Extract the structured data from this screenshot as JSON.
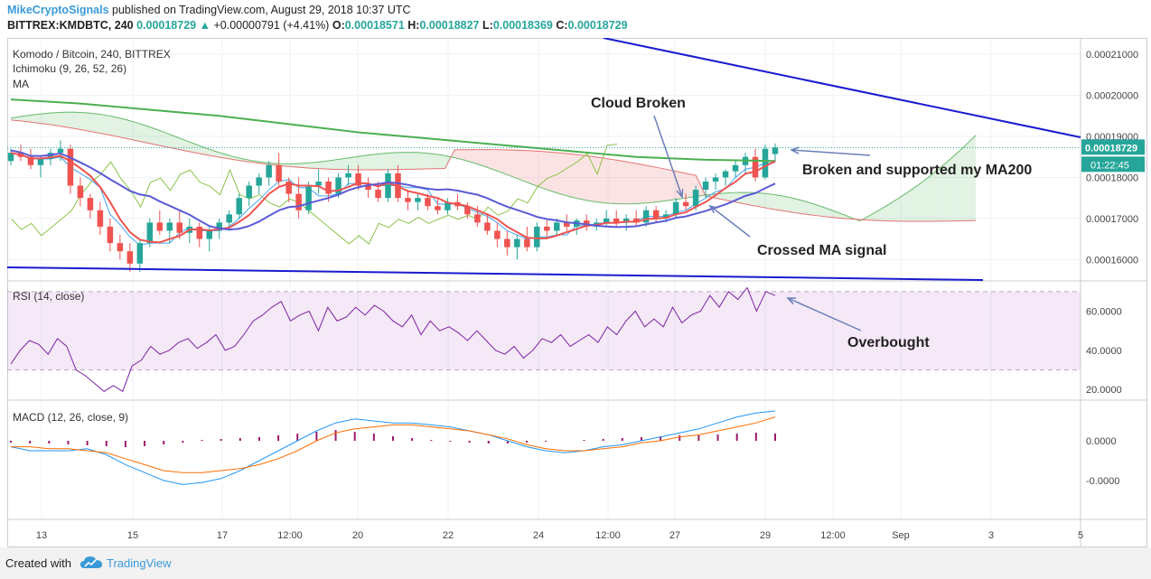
{
  "header": {
    "publisher": "MikeCryptoSignals",
    "published_text": "published on TradingView.com, August 29, 2018 10:37 UTC",
    "symbol": "BITTREX:KMDBTC, 240",
    "last": "0.00018729",
    "change": "+0.00000791 (+4.41%)",
    "o_label": "O:",
    "o": "0.00018571",
    "h_label": "H:",
    "h": "0.00018827",
    "l_label": "L:",
    "l": "0.00018369",
    "c_label": "C:",
    "c": "0.00018729"
  },
  "main_pane": {
    "title": "Komodo / Bitcoin, 240, BITTREX",
    "ichimoku_label": "Ichimoku (9, 26, 52, 26)",
    "ma_label": "MA",
    "price_badge": "0.00018729",
    "timer_badge": "01:22:45",
    "y_ticks": [
      "0.00021000",
      "0.00020000",
      "0.00019000",
      "0.00018000",
      "0.00017000",
      "0.00016000"
    ]
  },
  "annotations": {
    "cloud_broken": "Cloud Broken",
    "broken_supported": "Broken and supported my MA200",
    "crossed_ma": "Crossed MA signal",
    "overbought": "Overbought"
  },
  "rsi_pane": {
    "label": "RSI (14, close)",
    "y_ticks": [
      "60.0000",
      "40.0000",
      "20.0000"
    ]
  },
  "macd_pane": {
    "label": "MACD (12, 26, close, 9)",
    "y_ticks": [
      "0.0000",
      "-0.0000"
    ]
  },
  "x_axis": {
    "ticks": [
      "13",
      "15",
      "17",
      "12:00",
      "20",
      "22",
      "24",
      "12:00",
      "27",
      "29",
      "12:00",
      "Sep",
      "3",
      "5"
    ]
  },
  "footer": {
    "created_with": "Created with",
    "brand": "TradingView"
  },
  "colors": {
    "up": "#26a69a",
    "down": "#ef5350",
    "ma200": "#4caf50",
    "ma_fast": "#ef5350",
    "ma_blue": "#5b5bd6",
    "trendline": "#1a1ad0",
    "rsi": "#7b1fa2",
    "macd": "#2196f3",
    "signal": "#ff6d00",
    "hist": "#9c1a6a",
    "annotation_arrow": "#6a7fb8"
  },
  "chart_data": [
    {
      "type": "candlestick",
      "title": "Komodo / Bitcoin, 240, BITTREX",
      "ylim": [
        0.000155,
        0.000214
      ],
      "candles": [
        [
          0.000184,
          0.000187,
          0.000183,
          0.000186
        ],
        [
          0.000186,
          0.000188,
          0.000184,
          0.000185
        ],
        [
          0.000185,
          0.000187,
          0.000182,
          0.000183
        ],
        [
          0.000183,
          0.000185,
          0.00018,
          0.0001845
        ],
        [
          0.0001845,
          0.000187,
          0.000183,
          0.000186
        ],
        [
          0.000186,
          0.000189,
          0.000184,
          0.000187
        ],
        [
          0.000187,
          0.000188,
          0.000176,
          0.000178
        ],
        [
          0.000178,
          0.00018,
          0.000173,
          0.000175
        ],
        [
          0.000175,
          0.000176,
          0.00017,
          0.000172
        ],
        [
          0.000172,
          0.000174,
          0.000166,
          0.000168
        ],
        [
          0.000168,
          0.00017,
          0.000162,
          0.000164
        ],
        [
          0.000164,
          0.000166,
          0.00016,
          0.000162
        ],
        [
          0.000162,
          0.000164,
          0.000157,
          0.000159
        ],
        [
          0.000159,
          0.000165,
          0.000157,
          0.000164
        ],
        [
          0.000164,
          0.00017,
          0.000163,
          0.000169
        ],
        [
          0.000169,
          0.000172,
          0.000166,
          0.000167
        ],
        [
          0.000167,
          0.00017,
          0.000164,
          0.000169
        ],
        [
          0.000169,
          0.000172,
          0.000165,
          0.0001665
        ],
        [
          0.0001665,
          0.00017,
          0.000164,
          0.000168
        ],
        [
          0.000168,
          0.000169,
          0.000163,
          0.000165
        ],
        [
          0.000165,
          0.000168,
          0.000162,
          0.000167
        ],
        [
          0.000167,
          0.00017,
          0.000165,
          0.000169
        ],
        [
          0.000169,
          0.000172,
          0.000167,
          0.000171
        ],
        [
          0.000171,
          0.000176,
          0.00017,
          0.000175
        ],
        [
          0.000175,
          0.000179,
          0.000173,
          0.000178
        ],
        [
          0.000178,
          0.000181,
          0.000176,
          0.00018
        ],
        [
          0.00018,
          0.000184,
          0.000178,
          0.000183
        ],
        [
          0.000183,
          0.000186,
          0.000178,
          0.000179
        ],
        [
          0.000179,
          0.00018,
          0.000174,
          0.000176
        ],
        [
          0.000176,
          0.00018,
          0.00017,
          0.000172
        ],
        [
          0.000172,
          0.000179,
          0.000171,
          0.000178
        ],
        [
          0.000178,
          0.000182,
          0.000176,
          0.000179
        ],
        [
          0.000179,
          0.00018,
          0.000174,
          0.000176
        ],
        [
          0.000176,
          0.000181,
          0.000175,
          0.00018
        ],
        [
          0.00018,
          0.000183,
          0.000178,
          0.000181
        ],
        [
          0.000181,
          0.000183,
          0.000177,
          0.000178
        ],
        [
          0.000178,
          0.00018,
          0.000175,
          0.000177
        ],
        [
          0.000177,
          0.000179,
          0.000174,
          0.000175
        ],
        [
          0.000175,
          0.000182,
          0.000174,
          0.000181
        ],
        [
          0.000181,
          0.000183,
          0.000174,
          0.000175
        ],
        [
          0.000175,
          0.000177,
          0.000172,
          0.000174
        ],
        [
          0.000174,
          0.000176,
          0.000172,
          0.000175
        ],
        [
          0.000175,
          0.000176,
          0.000172,
          0.000173
        ],
        [
          0.000173,
          0.000175,
          0.000171,
          0.000172
        ],
        [
          0.000172,
          0.000175,
          0.000171,
          0.000174
        ],
        [
          0.000174,
          0.000176,
          0.000172,
          0.000173
        ],
        [
          0.000173,
          0.000174,
          0.00017,
          0.000171
        ],
        [
          0.000171,
          0.000173,
          0.000168,
          0.000169
        ],
        [
          0.000169,
          0.000171,
          0.000166,
          0.000167
        ],
        [
          0.000167,
          0.000169,
          0.000163,
          0.000165
        ],
        [
          0.000165,
          0.000167,
          0.000161,
          0.000163
        ],
        [
          0.000163,
          0.000166,
          0.00016,
          0.000165
        ],
        [
          0.000165,
          0.000168,
          0.000162,
          0.000163
        ],
        [
          0.000163,
          0.000169,
          0.000162,
          0.000168
        ],
        [
          0.000168,
          0.00017,
          0.000165,
          0.000167
        ],
        [
          0.000167,
          0.00017,
          0.000166,
          0.000169
        ],
        [
          0.000169,
          0.000171,
          0.000167,
          0.000168
        ],
        [
          0.000168,
          0.00017,
          0.000166,
          0.0001695
        ],
        [
          0.0001695,
          0.000171,
          0.000167,
          0.000168
        ],
        [
          0.000168,
          0.00017,
          0.000167,
          0.000169
        ],
        [
          0.000169,
          0.000172,
          0.000168,
          0.00017
        ],
        [
          0.00017,
          0.000172,
          0.000168,
          0.000169
        ],
        [
          0.000169,
          0.000171,
          0.000167,
          0.00017
        ],
        [
          0.00017,
          0.000172,
          0.000168,
          0.000169
        ],
        [
          0.000169,
          0.000173,
          0.000168,
          0.000172
        ],
        [
          0.000172,
          0.000173,
          0.000169,
          0.00017
        ],
        [
          0.00017,
          0.000172,
          0.000169,
          0.000171
        ],
        [
          0.000171,
          0.000175,
          0.00017,
          0.000174
        ],
        [
          0.000174,
          0.000176,
          0.000172,
          0.000173
        ],
        [
          0.000173,
          0.000178,
          0.000172,
          0.000177
        ],
        [
          0.000177,
          0.00018,
          0.000175,
          0.000179
        ],
        [
          0.000179,
          0.000181,
          0.000177,
          0.00018
        ],
        [
          0.00018,
          0.000182,
          0.000178,
          0.0001815
        ],
        [
          0.0001815,
          0.000184,
          0.00018,
          0.000183
        ],
        [
          0.000183,
          0.000186,
          0.000181,
          0.000185
        ],
        [
          0.000185,
          0.000187,
          0.000179,
          0.00018
        ],
        [
          0.00018,
          0.000188,
          0.0001795,
          0.000187
        ],
        [
          0.0001857,
          0.0001883,
          0.0001837,
          0.0001873
        ]
      ],
      "ma200": [
        0.000199,
        0.000198,
        0.0001965,
        0.000195,
        0.000193,
        0.000191,
        0.0001895,
        0.000188,
        0.0001865,
        0.000185,
        0.0001843,
        0.000184
      ],
      "price_line": 0.00018729
    },
    {
      "type": "line",
      "title": "RSI (14, close)",
      "ylim": [
        15,
        75
      ],
      "values": [
        33,
        40,
        45,
        43,
        38,
        46,
        42,
        30,
        27,
        23,
        19,
        22,
        19,
        32,
        35,
        42,
        38,
        40,
        44,
        46,
        41,
        44,
        48,
        40,
        42,
        48,
        55,
        58,
        62,
        65,
        55,
        58,
        60,
        50,
        62,
        55,
        57,
        62,
        58,
        63,
        60,
        55,
        52,
        58,
        48,
        55,
        50,
        52,
        49,
        45,
        50,
        45,
        40,
        38,
        42,
        36,
        40,
        46,
        44,
        48,
        42,
        45,
        48,
        44,
        52,
        48,
        55,
        60,
        52,
        56,
        52,
        62,
        54,
        58,
        60,
        68,
        62,
        70,
        66,
        72,
        60,
        70,
        68
      ]
    },
    {
      "type": "line",
      "title": "MACD (12, 26, close, 9)",
      "series": [
        {
          "name": "MACD",
          "values": [
            -3,
            -5,
            -5,
            -5,
            -4,
            -7,
            -12,
            -16,
            -20,
            -22,
            -21,
            -19,
            -15,
            -10,
            -5,
            0,
            5,
            9,
            11,
            10,
            9,
            9,
            8,
            7,
            5,
            3,
            0,
            -3,
            -5,
            -6,
            -5,
            -3,
            -2,
            0,
            2,
            4,
            6,
            9,
            12,
            14,
            15
          ]
        },
        {
          "name": "Signal",
          "values": [
            -3,
            -3,
            -4,
            -4,
            -5,
            -6,
            -9,
            -12,
            -15,
            -16,
            -16,
            -15,
            -14,
            -12,
            -9,
            -5,
            0,
            4,
            6,
            7,
            8,
            8,
            7,
            6,
            5,
            3,
            1,
            -2,
            -4,
            -5,
            -5,
            -4,
            -3,
            -1,
            0,
            2,
            3,
            5,
            7,
            9,
            12
          ]
        }
      ],
      "histogram": [
        -2,
        -3,
        -3,
        -4,
        -5,
        -6,
        -7,
        -6,
        -4,
        -2,
        1,
        2,
        3,
        4,
        6,
        8,
        10,
        12,
        10,
        8,
        5,
        3,
        1,
        -1,
        -2,
        -3,
        -3,
        -2,
        -1,
        0,
        1,
        2,
        3,
        4,
        5,
        6,
        6,
        7,
        8,
        9,
        8
      ]
    }
  ]
}
